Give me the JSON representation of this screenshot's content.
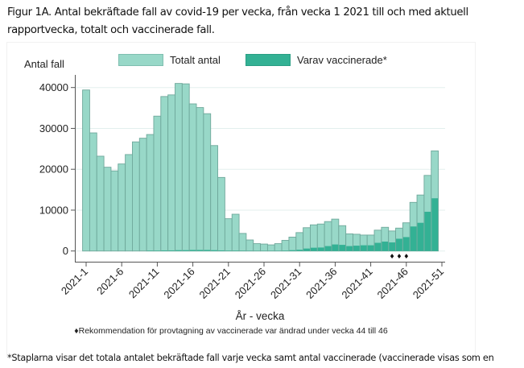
{
  "figure": {
    "title": "Figur 1A. Antal bekräftade fall av covid-19 per vecka, från vecka 1 2021 till och med aktuell rapportvecka, totalt och vaccinerade fall.",
    "footnote": "*Staplarna visar det totala antalet bekräftade fall varje vecka samt antal vaccinerade (vaccinerade visas som en"
  },
  "chart_data": {
    "type": "bar",
    "title": "",
    "ylabel": "Antal fall",
    "xlabel": "År - vecka",
    "ylim": [
      0,
      42000
    ],
    "yticks": [
      0,
      10000,
      20000,
      30000,
      40000
    ],
    "ytick_labels": [
      "0",
      "10000",
      "20000",
      "30000",
      "40000"
    ],
    "xtick_labels": [
      "2021-1",
      "2021-6",
      "2021-11",
      "2021-16",
      "2021-21",
      "2021-26",
      "2021-31",
      "2021-36",
      "2021-41",
      "2021-46",
      "2021-51"
    ],
    "xtick_weeks": [
      1,
      6,
      11,
      16,
      21,
      26,
      31,
      36,
      41,
      46,
      51
    ],
    "grid": true,
    "legend_position": "top",
    "categories": [
      1,
      2,
      3,
      4,
      5,
      6,
      7,
      8,
      9,
      10,
      11,
      12,
      13,
      14,
      15,
      16,
      17,
      18,
      19,
      20,
      21,
      22,
      23,
      24,
      25,
      26,
      27,
      28,
      29,
      30,
      31,
      32,
      33,
      34,
      35,
      36,
      37,
      38,
      39,
      40,
      41,
      42,
      43,
      44,
      45,
      46,
      47,
      48,
      49,
      50
    ],
    "series": [
      {
        "name": "Totalt antal",
        "color": "#98d8c8",
        "values": [
          39400,
          28900,
          23200,
          20500,
          19600,
          21300,
          23600,
          26700,
          27600,
          28500,
          33000,
          37800,
          38200,
          41000,
          40900,
          36000,
          35100,
          33600,
          25800,
          18000,
          7900,
          9000,
          4300,
          2700,
          1800,
          1700,
          1500,
          1800,
          2600,
          3400,
          4500,
          5700,
          6400,
          6600,
          7200,
          7800,
          6200,
          4200,
          4100,
          3900,
          3900,
          5100,
          5800,
          4900,
          5600,
          6900,
          11900,
          13700,
          18500,
          24500
        ]
      },
      {
        "name": "Varav vaccinerade*",
        "color": "#33b194",
        "values": [
          0,
          0,
          0,
          0,
          0,
          0,
          0,
          0,
          0,
          100,
          100,
          150,
          150,
          200,
          200,
          250,
          250,
          250,
          200,
          150,
          100,
          100,
          80,
          60,
          50,
          50,
          50,
          60,
          100,
          200,
          300,
          600,
          800,
          850,
          1200,
          1600,
          1500,
          1200,
          1300,
          1400,
          1400,
          2000,
          2300,
          2100,
          3000,
          3400,
          6000,
          6900,
          9600,
          12900
        ]
      }
    ],
    "annotation_marker": "♦",
    "annotation_weeks": [
      44,
      45,
      46
    ],
    "annotation_note": "♦Rekommendation för provtagning av vaccinerade var ändrad under vecka 44 till 46"
  }
}
